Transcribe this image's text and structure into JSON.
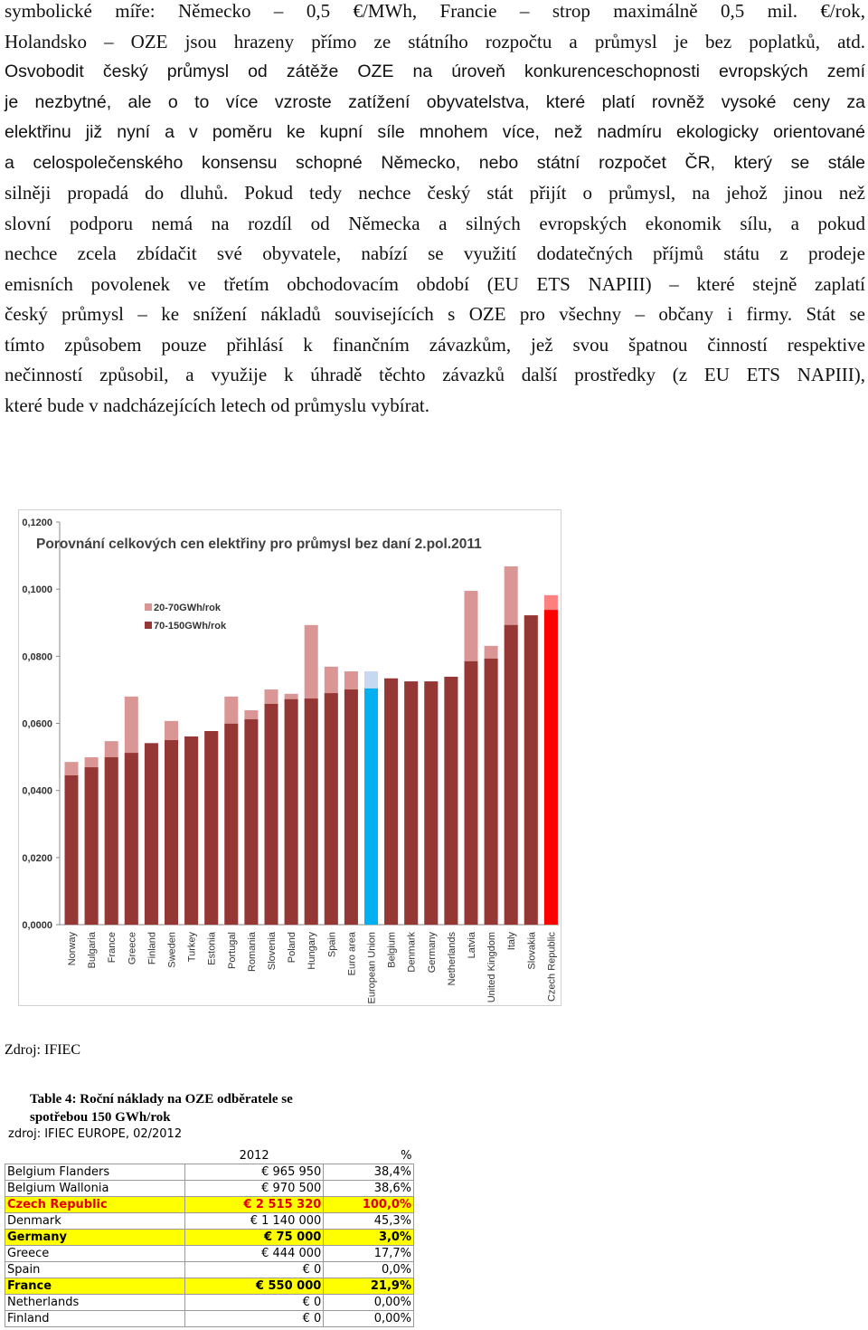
{
  "paragraph": {
    "lines": [
      "symbolické míře: Německo – 0,5 €/MWh, Francie – strop maximálně 0,5 mil. €/rok,",
      "Holandsko – OZE jsou hrazeny přímo ze státního rozpočtu a průmysl je bez poplatků, atd.",
      "Osvobodit český průmysl od zátěže OZE na úroveň konkurenceschopnosti evropských zemí",
      "je nezbytné, ale o to více vzroste zatížení obyvatelstva, které platí rovněž vysoké ceny za",
      "elektřinu již nyní a v poměru ke kupní síle mnohem více, než nadmíru ekologicky orientované",
      "a celospolečenského konsensu schopné Německo, nebo státní rozpočet ČR, který se stále",
      "silněji propadá do dluhů. Pokud tedy nechce český stát přijít o průmysl, na jehož jinou než",
      "slovní podporu nemá na rozdíl od Německa a silných evropských ekonomik sílu, a pokud",
      "nechce zcela zbídačit své obyvatele, nabízí se využití dodatečných příjmů státu z prodeje",
      "emisních povolenek ve třetím obchodovacím období (EU ETS NAPIII) – které stejně zaplatí",
      "český průmysl – ke snížení nákladů souvisejících s OZE pro všechny – občany i firmy. Stát se",
      "tímto způsobem pouze přihlásí k finančním závazkům, jež svou špatnou činností respektive",
      "nečinností způsobil, a využije k úhradě těchto závazků další prostředky (z EU ETS NAPIII),",
      "které bude v nadcházejících letech od průmyslu vybírat."
    ]
  },
  "chart_data": {
    "type": "bar",
    "title": "Porovnání celkových cen elektřiny pro průmysl bez daní 2.pol.2011",
    "categories": [
      "Norway",
      "Bulgaria",
      "France",
      "Greece",
      "Finland",
      "Sweden",
      "Turkey",
      "Estonia",
      "Portugal",
      "Romania",
      "Slovenia",
      "Poland",
      "Hungary",
      "Spain",
      "Euro area",
      "European Union",
      "Belgium",
      "Denmark",
      "Germany",
      "Netherlands",
      "Latvia",
      "United Kingdom",
      "Italy",
      "Slovakia",
      "Czech Republic"
    ],
    "series": [
      {
        "name": "20-70GWh/rok",
        "color": "#d99694",
        "colors": [
          "#d99694",
          "#d99694",
          "#d99694",
          "#d99694",
          "#d99694",
          "#d99694",
          "#d99694",
          "#d99694",
          "#d99694",
          "#d99694",
          "#d99694",
          "#d99694",
          "#d99694",
          "#d99694",
          "#d99694",
          "#c6d9f1",
          "#d99694",
          "#d99694",
          "#d99694",
          "#d99694",
          "#d99694",
          "#d99694",
          "#d99694",
          "#d99694",
          "#ff8080"
        ],
        "values": [
          0.0485,
          0.0499,
          0.0547,
          0.068,
          0.0541,
          0.0607,
          0.0561,
          0.0577,
          0.068,
          0.0639,
          0.0701,
          0.0688,
          0.0893,
          0.0769,
          0.0755,
          0.0755,
          0.0734,
          0.0725,
          0.0725,
          0.0739,
          0.0995,
          0.0831,
          0.1068,
          0.0922,
          0.0982
        ]
      },
      {
        "name": "70-150GWh/rok",
        "color": "#953735",
        "colors": [
          "#953735",
          "#953735",
          "#953735",
          "#953735",
          "#953735",
          "#953735",
          "#953735",
          "#953735",
          "#953735",
          "#953735",
          "#953735",
          "#953735",
          "#953735",
          "#953735",
          "#953735",
          "#00b0f0",
          "#953735",
          "#953735",
          "#953735",
          "#953735",
          "#953735",
          "#953735",
          "#953735",
          "#953735",
          "#ff0000"
        ],
        "values": [
          0.0445,
          0.0469,
          0.0499,
          0.0512,
          0.0541,
          0.055,
          0.0561,
          0.0577,
          0.0599,
          0.0612,
          0.0658,
          0.0672,
          0.0674,
          0.069,
          0.0701,
          0.0704,
          0.0734,
          0.0725,
          0.0725,
          0.0739,
          0.0785,
          0.0793,
          0.0893,
          0.0922,
          0.0938
        ]
      }
    ],
    "ylim": [
      0,
      0.12
    ],
    "yticks": [
      {
        "value": 0,
        "label": "0,0000"
      },
      {
        "value": 0.02,
        "label": "0,0200"
      },
      {
        "value": 0.04,
        "label": "0,0400"
      },
      {
        "value": 0.06,
        "label": "0,0600"
      },
      {
        "value": 0.08,
        "label": "0,0800"
      },
      {
        "value": 0.1,
        "label": "0,1000"
      },
      {
        "value": 0.12,
        "label": "0,1200"
      }
    ]
  },
  "source": "Zdroj: IFIEC",
  "table": {
    "title": [
      "Table 4: Roční náklady na OZE odběratele se",
      "spotřebou 150 GWh/rok"
    ],
    "subtitle": "zdroj: IFIEC EUROPE, 02/2012",
    "header": [
      "",
      "2012",
      "%"
    ],
    "rows": [
      {
        "cells": [
          "Belgium Flanders",
          "€ 965 950",
          "38,4%"
        ]
      },
      {
        "cells": [
          "Belgium Wallonia",
          "€ 970 500",
          "38,6%"
        ]
      },
      {
        "cells": [
          "Czech Republic",
          "€ 2 515 320",
          "100,0%"
        ],
        "highlight": "#ffff00",
        "color": "#e00000"
      },
      {
        "cells": [
          "Denmark",
          "€ 1 140 000",
          "45,3%"
        ]
      },
      {
        "cells": [
          "Germany",
          "€ 75 000",
          "3,0%"
        ],
        "highlight": "#ffff00",
        "color": "#000000"
      },
      {
        "cells": [
          "Greece",
          "€ 444 000",
          "17,7%"
        ]
      },
      {
        "cells": [
          "Spain",
          "€ 0",
          "0,0%"
        ]
      },
      {
        "cells": [
          "France",
          "€ 550 000",
          "21,9%"
        ],
        "highlight": "#ffff00",
        "color": "#000000"
      },
      {
        "cells": [
          "Netherlands",
          "€ 0",
          "0,00%"
        ]
      },
      {
        "cells": [
          "Finland",
          "€ 0",
          "0,00%"
        ]
      }
    ]
  }
}
